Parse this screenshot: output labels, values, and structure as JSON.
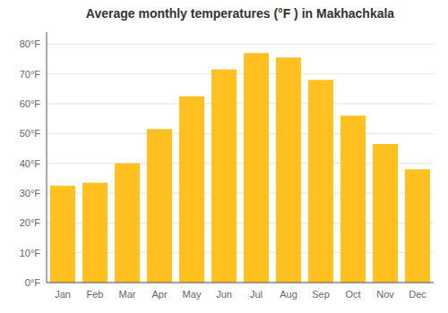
{
  "chart_data": {
    "type": "bar",
    "title": "Average monthly temperatures (°F ) in Makhachkala",
    "categories": [
      "Jan",
      "Feb",
      "Mar",
      "Apr",
      "May",
      "Jun",
      "Jul",
      "Aug",
      "Sep",
      "Oct",
      "Nov",
      "Dec"
    ],
    "values": [
      32.5,
      33.5,
      40.0,
      51.5,
      62.5,
      71.5,
      77.0,
      75.5,
      68.0,
      56.0,
      46.5,
      38.0
    ],
    "color": "#FFC020",
    "ylim": [
      0,
      84
    ],
    "yticks": [
      {
        "value": 0,
        "label": "0°F"
      },
      {
        "value": 10,
        "label": "10°F"
      },
      {
        "value": 20,
        "label": "20°F"
      },
      {
        "value": 30,
        "label": "30°F"
      },
      {
        "value": 40,
        "label": "40°F"
      },
      {
        "value": 50,
        "label": "50°F"
      },
      {
        "value": 60,
        "label": "60°F"
      },
      {
        "value": 70,
        "label": "70°F"
      },
      {
        "value": 80,
        "label": "80°F"
      }
    ],
    "grid": true
  }
}
